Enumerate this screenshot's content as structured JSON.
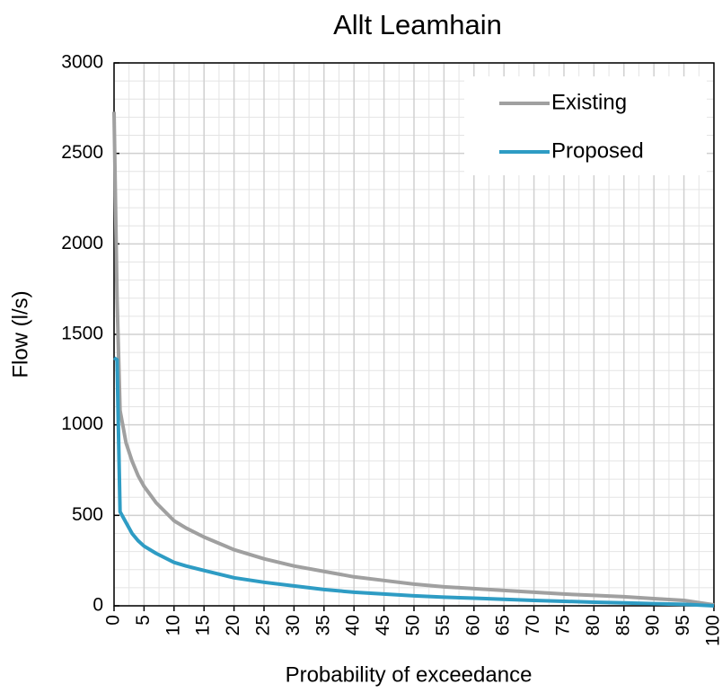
{
  "chart_data": {
    "type": "line",
    "title": "Allt Leamhain",
    "x_label": "Probability of exceedance",
    "y_label": "Flow (l/s)",
    "x": [
      0,
      0.5,
      1,
      2,
      3,
      4,
      5,
      7,
      10,
      12,
      15,
      20,
      25,
      30,
      35,
      40,
      45,
      50,
      55,
      60,
      65,
      70,
      75,
      80,
      85,
      90,
      95,
      100
    ],
    "series": [
      {
        "name": "Existing",
        "color": "#a0a0a0",
        "values": [
          2730,
          1700,
          1080,
          900,
          800,
          720,
          660,
          570,
          470,
          430,
          380,
          310,
          260,
          220,
          190,
          160,
          140,
          120,
          105,
          95,
          85,
          75,
          65,
          58,
          50,
          40,
          30,
          5
        ]
      },
      {
        "name": "Proposed",
        "color": "#2e9cc4",
        "values": [
          1370,
          1360,
          520,
          460,
          400,
          360,
          330,
          290,
          240,
          220,
          195,
          155,
          130,
          110,
          90,
          75,
          65,
          55,
          48,
          42,
          36,
          30,
          25,
          20,
          16,
          12,
          8,
          0
        ]
      }
    ],
    "xlim": [
      0,
      100
    ],
    "xticks": [
      0,
      5,
      10,
      15,
      20,
      25,
      30,
      35,
      40,
      45,
      50,
      55,
      60,
      65,
      70,
      75,
      80,
      85,
      90,
      95,
      100
    ],
    "ylim": [
      0,
      3000
    ],
    "yticks": [
      0,
      500,
      1000,
      1500,
      2000,
      2500,
      3000
    ],
    "grid": true,
    "legend": "upper right"
  }
}
